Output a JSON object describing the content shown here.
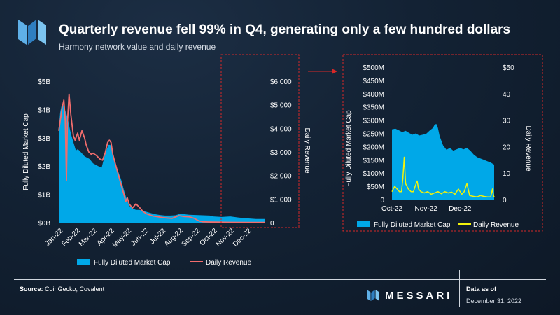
{
  "header": {
    "title": "Quarterly revenue fell 99% in Q4, generating only a few hundred dollars",
    "subtitle": "Harmony network value and daily revenue"
  },
  "colors": {
    "market_cap": "#00a8e8",
    "revenue_main": "#f26d6d",
    "revenue_zoom": "#f2f20c",
    "highlight_box": "#d62828"
  },
  "footer": {
    "source_label": "Source:",
    "source_text": "CoinGecko, Covalent",
    "brand": "MESSARI",
    "data_as_of_label": "Data as of",
    "data_as_of_date": "December 31, 2022"
  },
  "chart_data": [
    {
      "type": "area",
      "name": "main",
      "title": "Harmony network value and daily revenue",
      "xlabel": "",
      "ylabel": "Fully Diluted Market Cap",
      "y2label": "Daily Revenue",
      "categories": [
        "Jan-22",
        "Feb-22",
        "Mar-22",
        "Apr-22",
        "May-22",
        "Jun-22",
        "Jul-22",
        "Aug-22",
        "Sep-22",
        "Oct-22",
        "Nov-22",
        "Dec-22"
      ],
      "y_ticks": [
        "$0B",
        "$1B",
        "$2B",
        "$3B",
        "$4B",
        "$5B"
      ],
      "y2_ticks": [
        "0",
        "$1,000",
        "$2,000",
        "$3,000",
        "$4,000",
        "$5,000",
        "$6,000"
      ],
      "ylim": [
        0,
        5
      ],
      "y2lim": [
        0,
        6000
      ],
      "x_range": [
        0,
        12
      ],
      "series": [
        {
          "name": "Fully Diluted Market Cap",
          "axis": "left",
          "unit": "B USD",
          "points": [
            [
              0.0,
              3.3
            ],
            [
              0.08,
              3.9
            ],
            [
              0.15,
              4.1
            ],
            [
              0.25,
              4.2
            ],
            [
              0.35,
              4.0
            ],
            [
              0.45,
              3.85
            ],
            [
              0.55,
              3.6
            ],
            [
              0.65,
              3.3
            ],
            [
              0.75,
              3.05
            ],
            [
              0.85,
              2.85
            ],
            [
              1.0,
              2.55
            ],
            [
              1.1,
              2.6
            ],
            [
              1.2,
              2.55
            ],
            [
              1.35,
              2.45
            ],
            [
              1.5,
              2.35
            ],
            [
              1.65,
              2.3
            ],
            [
              1.8,
              2.25
            ],
            [
              2.0,
              2.1
            ],
            [
              2.15,
              2.05
            ],
            [
              2.3,
              2.0
            ],
            [
              2.5,
              1.95
            ],
            [
              2.65,
              2.3
            ],
            [
              2.8,
              2.6
            ],
            [
              2.9,
              2.75
            ],
            [
              3.0,
              2.75
            ],
            [
              3.1,
              2.6
            ],
            [
              3.2,
              2.35
            ],
            [
              3.3,
              2.0
            ],
            [
              3.4,
              1.9
            ],
            [
              3.5,
              1.75
            ],
            [
              3.65,
              1.5
            ],
            [
              3.8,
              1.15
            ],
            [
              3.95,
              0.85
            ],
            [
              4.1,
              0.6
            ],
            [
              4.3,
              0.5
            ],
            [
              4.5,
              0.45
            ],
            [
              4.7,
              0.45
            ],
            [
              5.0,
              0.4
            ],
            [
              5.3,
              0.35
            ],
            [
              5.6,
              0.3
            ],
            [
              5.9,
              0.27
            ],
            [
              6.2,
              0.25
            ],
            [
              6.5,
              0.25
            ],
            [
              6.8,
              0.26
            ],
            [
              7.0,
              0.3
            ],
            [
              7.3,
              0.3
            ],
            [
              7.6,
              0.28
            ],
            [
              8.0,
              0.27
            ],
            [
              8.4,
              0.26
            ],
            [
              8.8,
              0.25
            ],
            [
              9.0,
              0.22
            ],
            [
              9.5,
              0.2
            ],
            [
              10.0,
              0.22
            ],
            [
              10.5,
              0.18
            ],
            [
              11.0,
              0.15
            ],
            [
              11.5,
              0.13
            ],
            [
              12.0,
              0.13
            ]
          ]
        },
        {
          "name": "Daily Revenue",
          "axis": "right",
          "unit": "USD",
          "points": [
            [
              0.0,
              3900
            ],
            [
              0.1,
              4400
            ],
            [
              0.2,
              4900
            ],
            [
              0.3,
              5200
            ],
            [
              0.38,
              4300
            ],
            [
              0.45,
              1800
            ],
            [
              0.5,
              4200
            ],
            [
              0.6,
              5450
            ],
            [
              0.7,
              4600
            ],
            [
              0.85,
              3700
            ],
            [
              0.95,
              3500
            ],
            [
              1.1,
              3800
            ],
            [
              1.2,
              3500
            ],
            [
              1.35,
              3900
            ],
            [
              1.5,
              3600
            ],
            [
              1.6,
              3300
            ],
            [
              1.75,
              3000
            ],
            [
              1.9,
              2900
            ],
            [
              2.0,
              2950
            ],
            [
              2.2,
              2850
            ],
            [
              2.4,
              2700
            ],
            [
              2.55,
              2650
            ],
            [
              2.7,
              2950
            ],
            [
              2.85,
              3400
            ],
            [
              2.95,
              3500
            ],
            [
              3.05,
              3400
            ],
            [
              3.15,
              2900
            ],
            [
              3.3,
              2500
            ],
            [
              3.45,
              2100
            ],
            [
              3.6,
              1700
            ],
            [
              3.8,
              1200
            ],
            [
              3.9,
              900
            ],
            [
              4.0,
              1050
            ],
            [
              4.1,
              800
            ],
            [
              4.3,
              620
            ],
            [
              4.5,
              800
            ],
            [
              4.7,
              650
            ],
            [
              4.9,
              480
            ],
            [
              5.1,
              380
            ],
            [
              5.3,
              330
            ],
            [
              5.5,
              280
            ],
            [
              5.8,
              250
            ],
            [
              6.0,
              220
            ],
            [
              6.3,
              200
            ],
            [
              6.6,
              180
            ],
            [
              7.0,
              300
            ],
            [
              7.3,
              260
            ],
            [
              7.6,
              250
            ],
            [
              7.9,
              180
            ],
            [
              8.1,
              100
            ],
            [
              8.2,
              70
            ],
            [
              8.4,
              40
            ],
            [
              8.7,
              30
            ],
            [
              9.0,
              25
            ],
            [
              10.0,
              15
            ],
            [
              11.0,
              10
            ],
            [
              12.0,
              10
            ]
          ]
        }
      ],
      "highlight": "Oct-22 to Dec-22"
    },
    {
      "type": "area",
      "name": "zoom",
      "xlabel": "",
      "ylabel": "Fully Diluted Market Cap",
      "y2label": "Daily Revenue",
      "categories": [
        "Oct-22",
        "Nov-22",
        "Dec-22"
      ],
      "y_ticks": [
        "0",
        "$50M",
        "$100M",
        "$150M",
        "$200M",
        "$250M",
        "$300M",
        "$350M",
        "$400M",
        "$450M",
        "$500M"
      ],
      "y2_ticks": [
        "0",
        "10",
        "20",
        "30",
        "40",
        "$50"
      ],
      "ylim": [
        0,
        500
      ],
      "y2lim": [
        0,
        50
      ],
      "x_range": [
        0,
        3
      ],
      "series": [
        {
          "name": "Fully Diluted Market Cap",
          "axis": "left",
          "unit": "M USD",
          "points": [
            [
              0.0,
              265
            ],
            [
              0.1,
              268
            ],
            [
              0.2,
              262
            ],
            [
              0.3,
              255
            ],
            [
              0.4,
              260
            ],
            [
              0.5,
              252
            ],
            [
              0.6,
              245
            ],
            [
              0.7,
              250
            ],
            [
              0.8,
              242
            ],
            [
              1.0,
              248
            ],
            [
              1.1,
              260
            ],
            [
              1.2,
              270
            ],
            [
              1.25,
              282
            ],
            [
              1.3,
              286
            ],
            [
              1.35,
              270
            ],
            [
              1.4,
              240
            ],
            [
              1.5,
              205
            ],
            [
              1.6,
              188
            ],
            [
              1.7,
              195
            ],
            [
              1.8,
              185
            ],
            [
              2.0,
              195
            ],
            [
              2.1,
              190
            ],
            [
              2.2,
              195
            ],
            [
              2.3,
              185
            ],
            [
              2.4,
              170
            ],
            [
              2.5,
              160
            ],
            [
              2.6,
              155
            ],
            [
              2.7,
              150
            ],
            [
              2.8,
              145
            ],
            [
              2.9,
              140
            ],
            [
              3.0,
              132
            ]
          ]
        },
        {
          "name": "Daily Revenue",
          "axis": "right",
          "unit": "USD",
          "points": [
            [
              0.0,
              3
            ],
            [
              0.08,
              5
            ],
            [
              0.15,
              4
            ],
            [
              0.22,
              3
            ],
            [
              0.28,
              3
            ],
            [
              0.32,
              8
            ],
            [
              0.36,
              16
            ],
            [
              0.4,
              6
            ],
            [
              0.48,
              4
            ],
            [
              0.56,
              3
            ],
            [
              0.63,
              3
            ],
            [
              0.68,
              5
            ],
            [
              0.74,
              7
            ],
            [
              0.78,
              4
            ],
            [
              0.85,
              3
            ],
            [
              0.95,
              2.5
            ],
            [
              1.05,
              3
            ],
            [
              1.15,
              2
            ],
            [
              1.25,
              2.5
            ],
            [
              1.35,
              3
            ],
            [
              1.45,
              2.2
            ],
            [
              1.55,
              3
            ],
            [
              1.65,
              2.5
            ],
            [
              1.75,
              2.8
            ],
            [
              1.85,
              2
            ],
            [
              1.95,
              4
            ],
            [
              2.05,
              2
            ],
            [
              2.12,
              3
            ],
            [
              2.2,
              6
            ],
            [
              2.28,
              1.5
            ],
            [
              2.4,
              1.2
            ],
            [
              2.5,
              1
            ],
            [
              2.6,
              1.5
            ],
            [
              2.7,
              1.2
            ],
            [
              2.8,
              1
            ],
            [
              2.9,
              1
            ],
            [
              2.95,
              4
            ],
            [
              2.98,
              1.5
            ],
            [
              3.0,
              1
            ]
          ]
        }
      ]
    }
  ]
}
